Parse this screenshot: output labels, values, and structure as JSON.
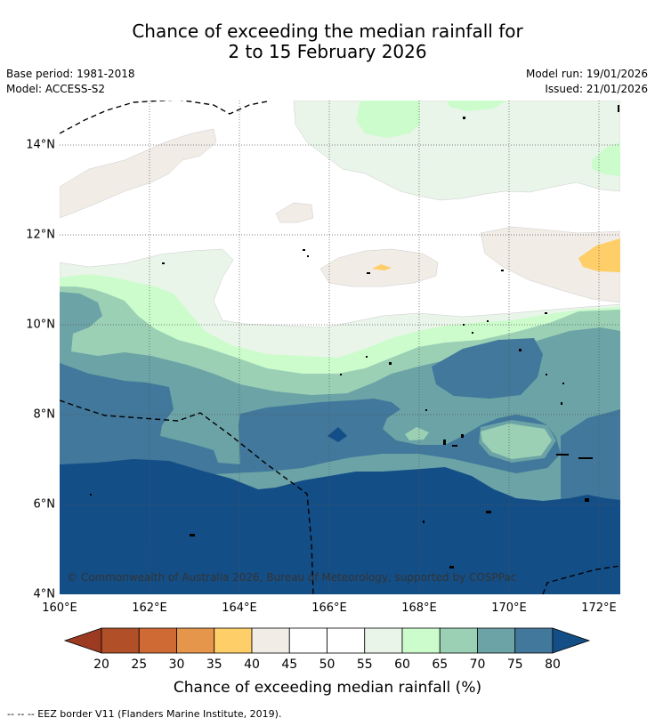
{
  "header": {
    "title_line1": "Chance of exceeding the median rainfall for",
    "title_line2": "2 to 15 February 2026",
    "base_period": "Base period: 1981-2018",
    "model": "Model: ACCESS-S2",
    "model_run": "Model run: 19/01/2026",
    "issued": "Issued: 21/01/2026"
  },
  "map": {
    "lon_range": [
      160,
      172.5
    ],
    "lat_range": [
      4,
      15
    ],
    "lat_ticks": [
      {
        "value": 4,
        "label": "4°N"
      },
      {
        "value": 6,
        "label": "6°N"
      },
      {
        "value": 8,
        "label": "8°N"
      },
      {
        "value": 10,
        "label": "10°N"
      },
      {
        "value": 12,
        "label": "12°N"
      },
      {
        "value": 14,
        "label": "14°N"
      }
    ],
    "lon_ticks": [
      {
        "value": 160,
        "label": "160°E"
      },
      {
        "value": 162,
        "label": "162°E"
      },
      {
        "value": 164,
        "label": "164°E"
      },
      {
        "value": 166,
        "label": "166°E"
      },
      {
        "value": 168,
        "label": "168°E"
      },
      {
        "value": 170,
        "label": "170°E"
      },
      {
        "value": 172,
        "label": "172°E"
      }
    ],
    "copyright": "© Commonwealth of Australia 2026, Bureau of Meteorology, supported by COSPPac"
  },
  "colorbar": {
    "label": "Chance of exceeding median rainfall (%)",
    "ticks": [
      "20",
      "25",
      "30",
      "35",
      "40",
      "45",
      "50",
      "55",
      "60",
      "65",
      "70",
      "75",
      "80"
    ],
    "under_color": "#9c3a22",
    "over_color": "#144e86",
    "colors": [
      "#b14f28",
      "#d06a35",
      "#e5964a",
      "#fece68",
      "#f1ece6",
      "#ffffff",
      "#ffffff",
      "#e9f5e9",
      "#ccfccc",
      "#9bd0b5",
      "#6ba3a6",
      "#41789b"
    ]
  },
  "footer": {
    "legend": "--  --  -- EEZ border V11 (Flanders Marine Institute, 2019)."
  }
}
